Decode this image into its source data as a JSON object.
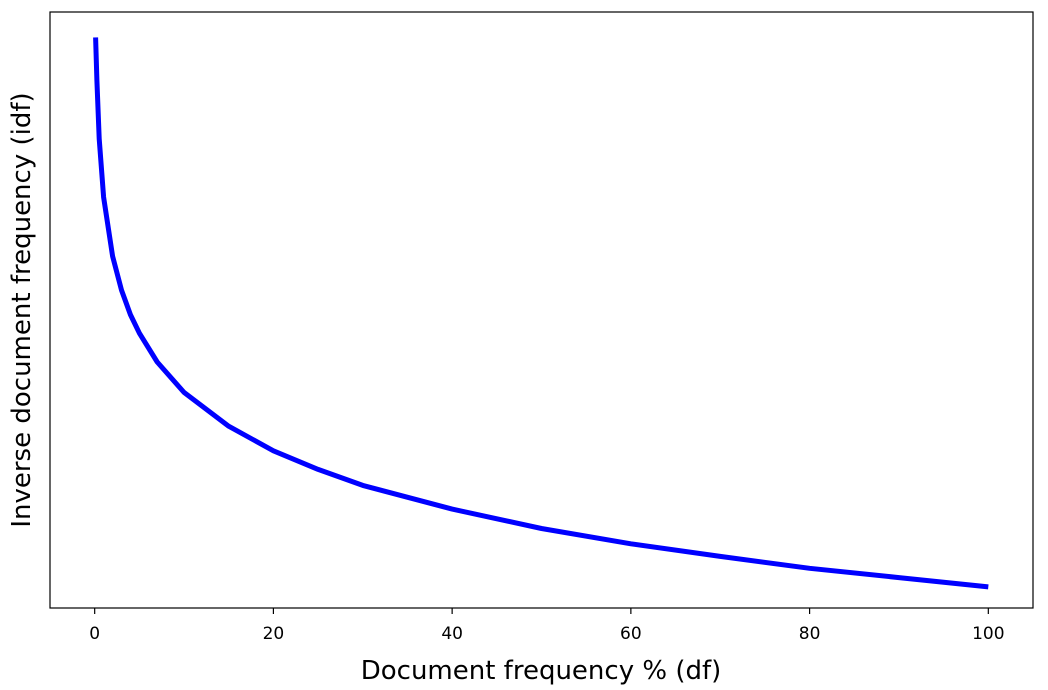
{
  "chart_data": {
    "type": "line",
    "title": "",
    "xlabel": "Document frequency % (df)",
    "ylabel": "Inverse document frequency (idf)",
    "xlim": [
      -5,
      105
    ],
    "ylim": [
      -0.25,
      6.8
    ],
    "xticks": [
      "0",
      "20",
      "40",
      "60",
      "80",
      "100"
    ],
    "yticks_shown": false,
    "grid": false,
    "legend": "none",
    "series": [
      {
        "color": "#0000ff",
        "x": [
          0.1,
          0.25,
          0.5,
          1,
          2,
          3,
          4,
          5,
          7,
          10,
          15,
          20,
          25,
          30,
          40,
          50,
          60,
          70,
          80,
          90,
          100
        ],
        "y": [
          6.5,
          5.99,
          5.3,
          4.61,
          3.91,
          3.51,
          3.22,
          3.0,
          2.66,
          2.3,
          1.9,
          1.61,
          1.39,
          1.2,
          0.92,
          0.69,
          0.51,
          0.36,
          0.22,
          0.11,
          0.0
        ]
      }
    ]
  }
}
